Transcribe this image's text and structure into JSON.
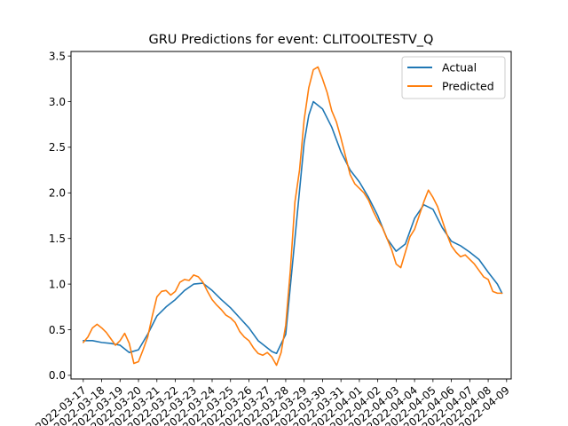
{
  "chart_data": {
    "type": "line",
    "title": "GRU Predictions for event: CLITOOLTESTV_Q",
    "xlabel": "",
    "ylabel": "",
    "ylim": [
      -0.04,
      3.55
    ],
    "yticks": [
      0.0,
      0.5,
      1.0,
      1.5,
      2.0,
      2.5,
      3.0,
      3.5
    ],
    "ytick_labels": [
      "0.0",
      "0.5",
      "1.0",
      "1.5",
      "2.0",
      "2.5",
      "3.0",
      "3.5"
    ],
    "xlim": [
      "2022-03-16T08:00",
      "2022-04-09T06:00"
    ],
    "xtick_labels": [
      "2022-03-17",
      "2022-03-18",
      "2022-03-19",
      "2022-03-20",
      "2022-03-21",
      "2022-03-22",
      "2022-03-23",
      "2022-03-24",
      "2022-03-25",
      "2022-03-26",
      "2022-03-27",
      "2022-03-28",
      "2022-03-29",
      "2022-03-30",
      "2022-03-31",
      "2022-04-01",
      "2022-04-02",
      "2022-04-03",
      "2022-04-04",
      "2022-04-05",
      "2022-04-06",
      "2022-04-07",
      "2022-04-08",
      "2022-04-09"
    ],
    "legend": {
      "position": "top-right",
      "entries": [
        "Actual",
        "Predicted"
      ]
    },
    "grid": false,
    "series": [
      {
        "name": "Actual",
        "color": "#1f77b4",
        "x": [
          "2022-03-17T00:00",
          "2022-03-17T12:00",
          "2022-03-18T00:00",
          "2022-03-18T12:00",
          "2022-03-19T00:00",
          "2022-03-19T12:00",
          "2022-03-20T00:00",
          "2022-03-20T12:00",
          "2022-03-21T00:00",
          "2022-03-21T12:00",
          "2022-03-22T00:00",
          "2022-03-22T12:00",
          "2022-03-23T00:00",
          "2022-03-23T12:00",
          "2022-03-24T00:00",
          "2022-03-24T12:00",
          "2022-03-25T00:00",
          "2022-03-25T12:00",
          "2022-03-26T00:00",
          "2022-03-26T12:00",
          "2022-03-27T00:00",
          "2022-03-27T06:00",
          "2022-03-27T12:00",
          "2022-03-28T00:00",
          "2022-03-28T12:00",
          "2022-03-29T00:00",
          "2022-03-29T06:00",
          "2022-03-29T12:00",
          "2022-03-30T00:00",
          "2022-03-30T12:00",
          "2022-03-31T00:00",
          "2022-03-31T12:00",
          "2022-04-01T00:00",
          "2022-04-01T12:00",
          "2022-04-02T00:00",
          "2022-04-02T12:00",
          "2022-04-03T00:00",
          "2022-04-03T12:00",
          "2022-04-04T00:00",
          "2022-04-04T12:00",
          "2022-04-05T00:00",
          "2022-04-05T12:00",
          "2022-04-06T00:00",
          "2022-04-06T12:00",
          "2022-04-07T00:00",
          "2022-04-07T12:00",
          "2022-04-08T00:00",
          "2022-04-08T12:00",
          "2022-04-08T18:00"
        ],
        "y": [
          0.38,
          0.38,
          0.36,
          0.35,
          0.33,
          0.25,
          0.28,
          0.45,
          0.65,
          0.75,
          0.83,
          0.93,
          1.0,
          1.01,
          0.93,
          0.83,
          0.74,
          0.63,
          0.52,
          0.38,
          0.3,
          0.26,
          0.24,
          0.45,
          1.5,
          2.55,
          2.85,
          3.0,
          2.92,
          2.72,
          2.45,
          2.25,
          2.12,
          1.95,
          1.75,
          1.5,
          1.36,
          1.44,
          1.72,
          1.87,
          1.82,
          1.62,
          1.47,
          1.42,
          1.35,
          1.27,
          1.13,
          1.0,
          0.9
        ]
      },
      {
        "name": "Predicted",
        "color": "#ff7f0e",
        "x": [
          "2022-03-17T00:00",
          "2022-03-17T06:00",
          "2022-03-17T12:00",
          "2022-03-17T18:00",
          "2022-03-18T00:00",
          "2022-03-18T06:00",
          "2022-03-18T12:00",
          "2022-03-18T18:00",
          "2022-03-19T00:00",
          "2022-03-19T06:00",
          "2022-03-19T12:00",
          "2022-03-19T18:00",
          "2022-03-20T00:00",
          "2022-03-20T06:00",
          "2022-03-20T12:00",
          "2022-03-20T18:00",
          "2022-03-21T00:00",
          "2022-03-21T06:00",
          "2022-03-21T12:00",
          "2022-03-21T18:00",
          "2022-03-22T00:00",
          "2022-03-22T06:00",
          "2022-03-22T12:00",
          "2022-03-22T18:00",
          "2022-03-23T00:00",
          "2022-03-23T06:00",
          "2022-03-23T12:00",
          "2022-03-23T18:00",
          "2022-03-24T00:00",
          "2022-03-24T06:00",
          "2022-03-24T12:00",
          "2022-03-24T18:00",
          "2022-03-25T00:00",
          "2022-03-25T06:00",
          "2022-03-25T12:00",
          "2022-03-25T18:00",
          "2022-03-26T00:00",
          "2022-03-26T06:00",
          "2022-03-26T12:00",
          "2022-03-26T18:00",
          "2022-03-27T00:00",
          "2022-03-27T06:00",
          "2022-03-27T12:00",
          "2022-03-27T18:00",
          "2022-03-28T00:00",
          "2022-03-28T06:00",
          "2022-03-28T12:00",
          "2022-03-28T18:00",
          "2022-03-29T00:00",
          "2022-03-29T06:00",
          "2022-03-29T12:00",
          "2022-03-29T18:00",
          "2022-03-30T00:00",
          "2022-03-30T06:00",
          "2022-03-30T12:00",
          "2022-03-30T18:00",
          "2022-03-31T00:00",
          "2022-03-31T06:00",
          "2022-03-31T12:00",
          "2022-03-31T18:00",
          "2022-04-01T00:00",
          "2022-04-01T06:00",
          "2022-04-01T12:00",
          "2022-04-01T18:00",
          "2022-04-02T00:00",
          "2022-04-02T06:00",
          "2022-04-02T12:00",
          "2022-04-02T18:00",
          "2022-04-03T00:00",
          "2022-04-03T06:00",
          "2022-04-03T12:00",
          "2022-04-03T18:00",
          "2022-04-04T00:00",
          "2022-04-04T06:00",
          "2022-04-04T12:00",
          "2022-04-04T18:00",
          "2022-04-05T00:00",
          "2022-04-05T06:00",
          "2022-04-05T12:00",
          "2022-04-05T18:00",
          "2022-04-06T00:00",
          "2022-04-06T06:00",
          "2022-04-06T12:00",
          "2022-04-06T18:00",
          "2022-04-07T00:00",
          "2022-04-07T06:00",
          "2022-04-07T12:00",
          "2022-04-07T18:00",
          "2022-04-08T00:00",
          "2022-04-08T06:00",
          "2022-04-08T12:00",
          "2022-04-08T18:00"
        ],
        "y": [
          0.36,
          0.42,
          0.52,
          0.56,
          0.52,
          0.47,
          0.4,
          0.33,
          0.38,
          0.46,
          0.35,
          0.13,
          0.15,
          0.28,
          0.42,
          0.65,
          0.86,
          0.92,
          0.93,
          0.88,
          0.92,
          1.02,
          1.05,
          1.04,
          1.1,
          1.08,
          1.02,
          0.92,
          0.83,
          0.77,
          0.72,
          0.66,
          0.63,
          0.58,
          0.48,
          0.42,
          0.38,
          0.3,
          0.24,
          0.22,
          0.25,
          0.2,
          0.11,
          0.25,
          0.55,
          1.15,
          1.9,
          2.25,
          2.8,
          3.15,
          3.35,
          3.38,
          3.25,
          3.1,
          2.9,
          2.78,
          2.6,
          2.4,
          2.2,
          2.1,
          2.05,
          2.0,
          1.92,
          1.8,
          1.7,
          1.62,
          1.5,
          1.38,
          1.22,
          1.18,
          1.35,
          1.52,
          1.6,
          1.75,
          1.9,
          2.03,
          1.95,
          1.85,
          1.7,
          1.55,
          1.42,
          1.35,
          1.3,
          1.32,
          1.27,
          1.22,
          1.15,
          1.08,
          1.05,
          0.92,
          0.9,
          0.9
        ]
      }
    ]
  }
}
